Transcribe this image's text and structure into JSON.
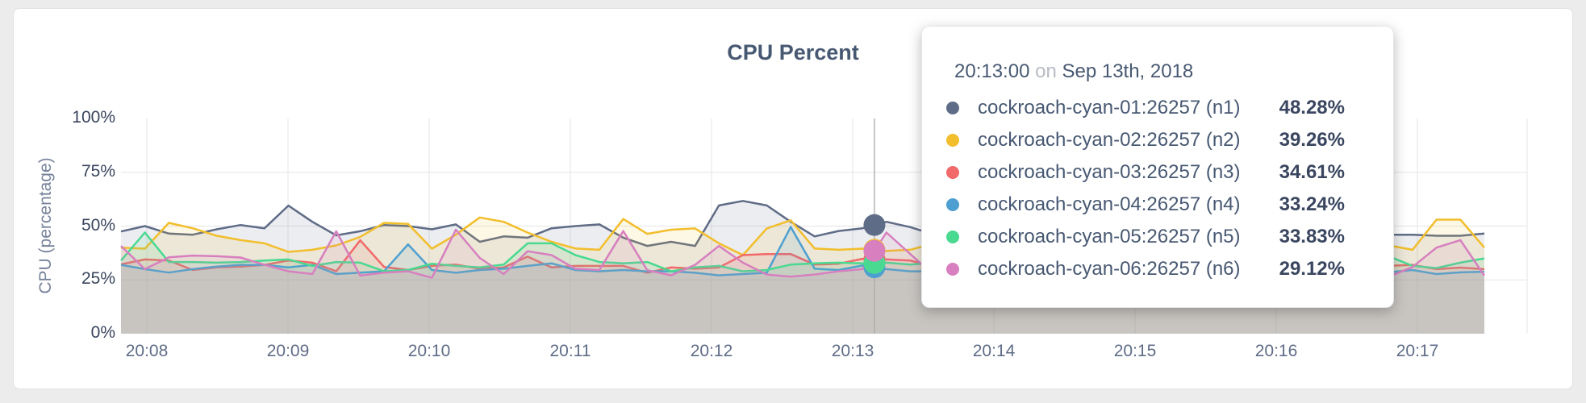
{
  "card": {
    "title": "CPU Percent"
  },
  "chart_data": {
    "type": "line",
    "title": "CPU Percent",
    "xlabel": "",
    "ylabel": "CPU (percentage)",
    "ylim": [
      0,
      100
    ],
    "grid": true,
    "x_ticks": [
      "20:08",
      "20:09",
      "20:10",
      "20:11",
      "20:12",
      "20:13",
      "20:14",
      "20:15",
      "20:16",
      "20:17"
    ],
    "y_ticks": [
      "0%",
      "25%",
      "50%",
      "75%",
      "100%"
    ],
    "y_tick_values": [
      0,
      25,
      50,
      75,
      100
    ],
    "x_step_seconds": 10,
    "series": [
      {
        "name": "cockroach-cyan-01:26257 (n1)",
        "color": "#5F6C87",
        "values": [
          47.5,
          50,
          46.5,
          46,
          48.5,
          50.5,
          49,
          59.5,
          52,
          45.7,
          47.6,
          50.5,
          50,
          48.5,
          50.8,
          42.7,
          45.2,
          44.6,
          49,
          50,
          50.8,
          44.6,
          40.8,
          42.7,
          40.8,
          59.6,
          61.7,
          59.6,
          52,
          45.2,
          47.7,
          49,
          52,
          49.5,
          46,
          48,
          44,
          47,
          49,
          46,
          45,
          48,
          50,
          47,
          44,
          46,
          48,
          45,
          47,
          49,
          46,
          44,
          45,
          46,
          46,
          45.5,
          45.5,
          46.5
        ]
      },
      {
        "name": "cockroach-cyan-02:26257 (n2)",
        "color": "#F2BE2C",
        "values": [
          40,
          39.5,
          51.5,
          49,
          45.5,
          43.5,
          42,
          38,
          39,
          41,
          45,
          51.5,
          51,
          39.5,
          46,
          54,
          52,
          47,
          42.7,
          39.6,
          39,
          53.3,
          46.4,
          48.3,
          48.9,
          42,
          36.5,
          48.9,
          52.7,
          39.6,
          39,
          39.5,
          38.5,
          39,
          42,
          46,
          40,
          38,
          44,
          50,
          46,
          42,
          39,
          45,
          48,
          43,
          40,
          44,
          47,
          42,
          39,
          43,
          46,
          41,
          39,
          53,
          53,
          40
        ]
      },
      {
        "name": "cockroach-cyan-03:26257 (n3)",
        "color": "#F16969",
        "values": [
          32.2,
          34.5,
          34,
          29.6,
          30.8,
          31.2,
          32,
          34,
          33,
          29,
          43.4,
          31,
          29.6,
          31.5,
          32.1,
          30.2,
          30.8,
          35.8,
          30.8,
          31.5,
          31.5,
          31.5,
          28.3,
          30.8,
          30.2,
          30.8,
          36.5,
          37,
          37,
          32.1,
          32.5,
          34.8,
          34.5,
          34,
          31,
          29.5,
          32,
          34,
          30,
          29,
          31.5,
          33,
          30,
          29.5,
          32,
          34.5,
          31,
          29,
          30.5,
          33,
          31,
          29.5,
          32,
          31.5,
          32,
          30,
          30.7,
          30
        ]
      },
      {
        "name": "cockroach-cyan-04:26257 (n4)",
        "color": "#4E9FD1",
        "values": [
          32,
          30,
          28.4,
          30,
          31.2,
          32,
          32,
          30.8,
          32,
          27.7,
          28.4,
          29,
          41.5,
          29.6,
          28.3,
          29.6,
          30.2,
          31.5,
          32.7,
          29.6,
          29,
          29.6,
          29,
          29,
          28.3,
          27.1,
          27.7,
          28.3,
          49.6,
          30.2,
          29.6,
          31.7,
          30,
          29,
          29,
          31,
          28,
          27.5,
          30,
          32,
          29,
          28,
          30.5,
          29,
          27.5,
          29.5,
          31,
          28.5,
          27.5,
          29,
          30.5,
          28,
          29,
          28.5,
          29.6,
          27.7,
          28.5,
          28.8
        ]
      },
      {
        "name": "cockroach-cyan-05:26257 (n5)",
        "color": "#49D990",
        "values": [
          34,
          47,
          33.3,
          33.3,
          33,
          33.3,
          34,
          34.5,
          31.5,
          33.3,
          33,
          29,
          29.6,
          32.5,
          31.5,
          30.8,
          32.1,
          42,
          42,
          36.5,
          33.3,
          32.7,
          33.3,
          29,
          30.8,
          31.5,
          29,
          29.6,
          32.1,
          32.7,
          33,
          32.7,
          33,
          32.1,
          33,
          35,
          31,
          29.5,
          32,
          34,
          30.5,
          29,
          32.5,
          35,
          31,
          30,
          33,
          36,
          32,
          30,
          33.5,
          31,
          29.5,
          36,
          31.5,
          30.5,
          33,
          35
        ]
      },
      {
        "name": "cockroach-cyan-06:26257 (n6)",
        "color": "#D77FBF",
        "values": [
          40.8,
          30,
          35.5,
          36.3,
          36,
          35.4,
          32,
          29,
          27.7,
          47.6,
          27,
          28.4,
          29,
          26,
          48.3,
          35.2,
          27.7,
          38.3,
          36.5,
          30.2,
          29.6,
          47.7,
          29.5,
          27.1,
          32,
          40.8,
          33,
          27.5,
          26.5,
          27.5,
          29,
          30,
          47,
          37,
          27,
          25,
          28,
          36,
          30,
          26,
          29,
          33,
          27,
          25,
          30,
          38,
          31,
          26,
          28,
          34,
          29,
          26,
          30,
          26.5,
          31,
          40,
          43.5,
          27
        ]
      }
    ]
  },
  "hover": {
    "t_seconds": 315,
    "line_color": "#a9a9a9"
  },
  "tooltip": {
    "time": "20:13:00",
    "sep": "on",
    "date": "Sep 13th, 2018",
    "rows": [
      {
        "name": "cockroach-cyan-01:26257 (n1)",
        "value": "48.28%",
        "color": "#5F6C87"
      },
      {
        "name": "cockroach-cyan-02:26257 (n2)",
        "value": "39.26%",
        "color": "#F2BE2C"
      },
      {
        "name": "cockroach-cyan-03:26257 (n3)",
        "value": "34.61%",
        "color": "#F16969"
      },
      {
        "name": "cockroach-cyan-04:26257 (n4)",
        "value": "33.24%",
        "color": "#4E9FD1"
      },
      {
        "name": "cockroach-cyan-05:26257 (n5)",
        "value": "33.83%",
        "color": "#49D990"
      },
      {
        "name": "cockroach-cyan-06:26257 (n6)",
        "value": "29.12%",
        "color": "#D77FBF"
      }
    ]
  },
  "style": {
    "grid_color": "#e5e5e5",
    "fill_opacity": 0.12,
    "line_width": 2.5
  }
}
